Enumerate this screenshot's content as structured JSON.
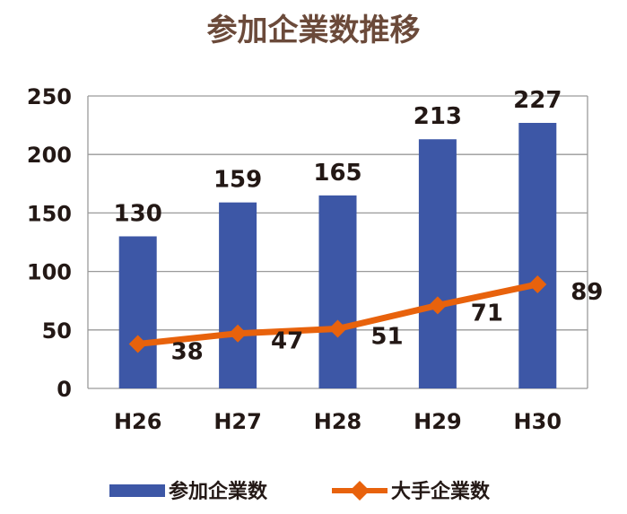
{
  "chart_data": {
    "type": "bar",
    "title": "参加企業数推移",
    "categories": [
      "H26",
      "H27",
      "H28",
      "H29",
      "H30"
    ],
    "series": [
      {
        "name": "参加企業数",
        "type": "bar",
        "values": [
          130,
          159,
          165,
          213,
          227
        ],
        "color": "#3d57a6"
      },
      {
        "name": "大手企業数",
        "type": "line",
        "marker": "diamond",
        "values": [
          38,
          47,
          51,
          71,
          89
        ],
        "color": "#e8620c"
      }
    ],
    "y_ticks": [
      "0",
      "50",
      "100",
      "150",
      "200",
      "250"
    ],
    "ylim": [
      0,
      250
    ],
    "grid": true,
    "legend_position": "bottom",
    "title_color": "#6b4a3a"
  }
}
